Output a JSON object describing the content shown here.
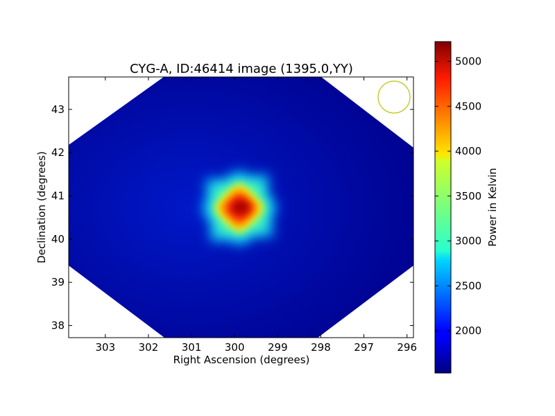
{
  "chart_data": {
    "type": "heatmap",
    "title": "CYG-A, ID:46414 image (1395.0,YY)",
    "xlabel": "Right Ascension (degrees)",
    "ylabel": "Declination (degrees)",
    "xlim": [
      303.85,
      295.85
    ],
    "ylim": [
      37.72,
      43.75
    ],
    "x_ticks": [
      303,
      302,
      301,
      300,
      299,
      298,
      297,
      296
    ],
    "y_ticks": [
      38,
      39,
      40,
      41,
      42,
      43
    ],
    "x_inverted": true,
    "colormap": "jet",
    "peak": {
      "ra": 299.85,
      "dec": 40.73,
      "value": 5220
    },
    "background_value": 1700,
    "beam_circle": {
      "ra": 296.35,
      "dec": 43.3,
      "color": "#bfbf00"
    },
    "colorbar": {
      "label": "Power in Kelvin",
      "min": 1530,
      "max": 5220,
      "ticks": [
        2000,
        2500,
        3000,
        3500,
        4000,
        4500,
        5000
      ]
    }
  }
}
